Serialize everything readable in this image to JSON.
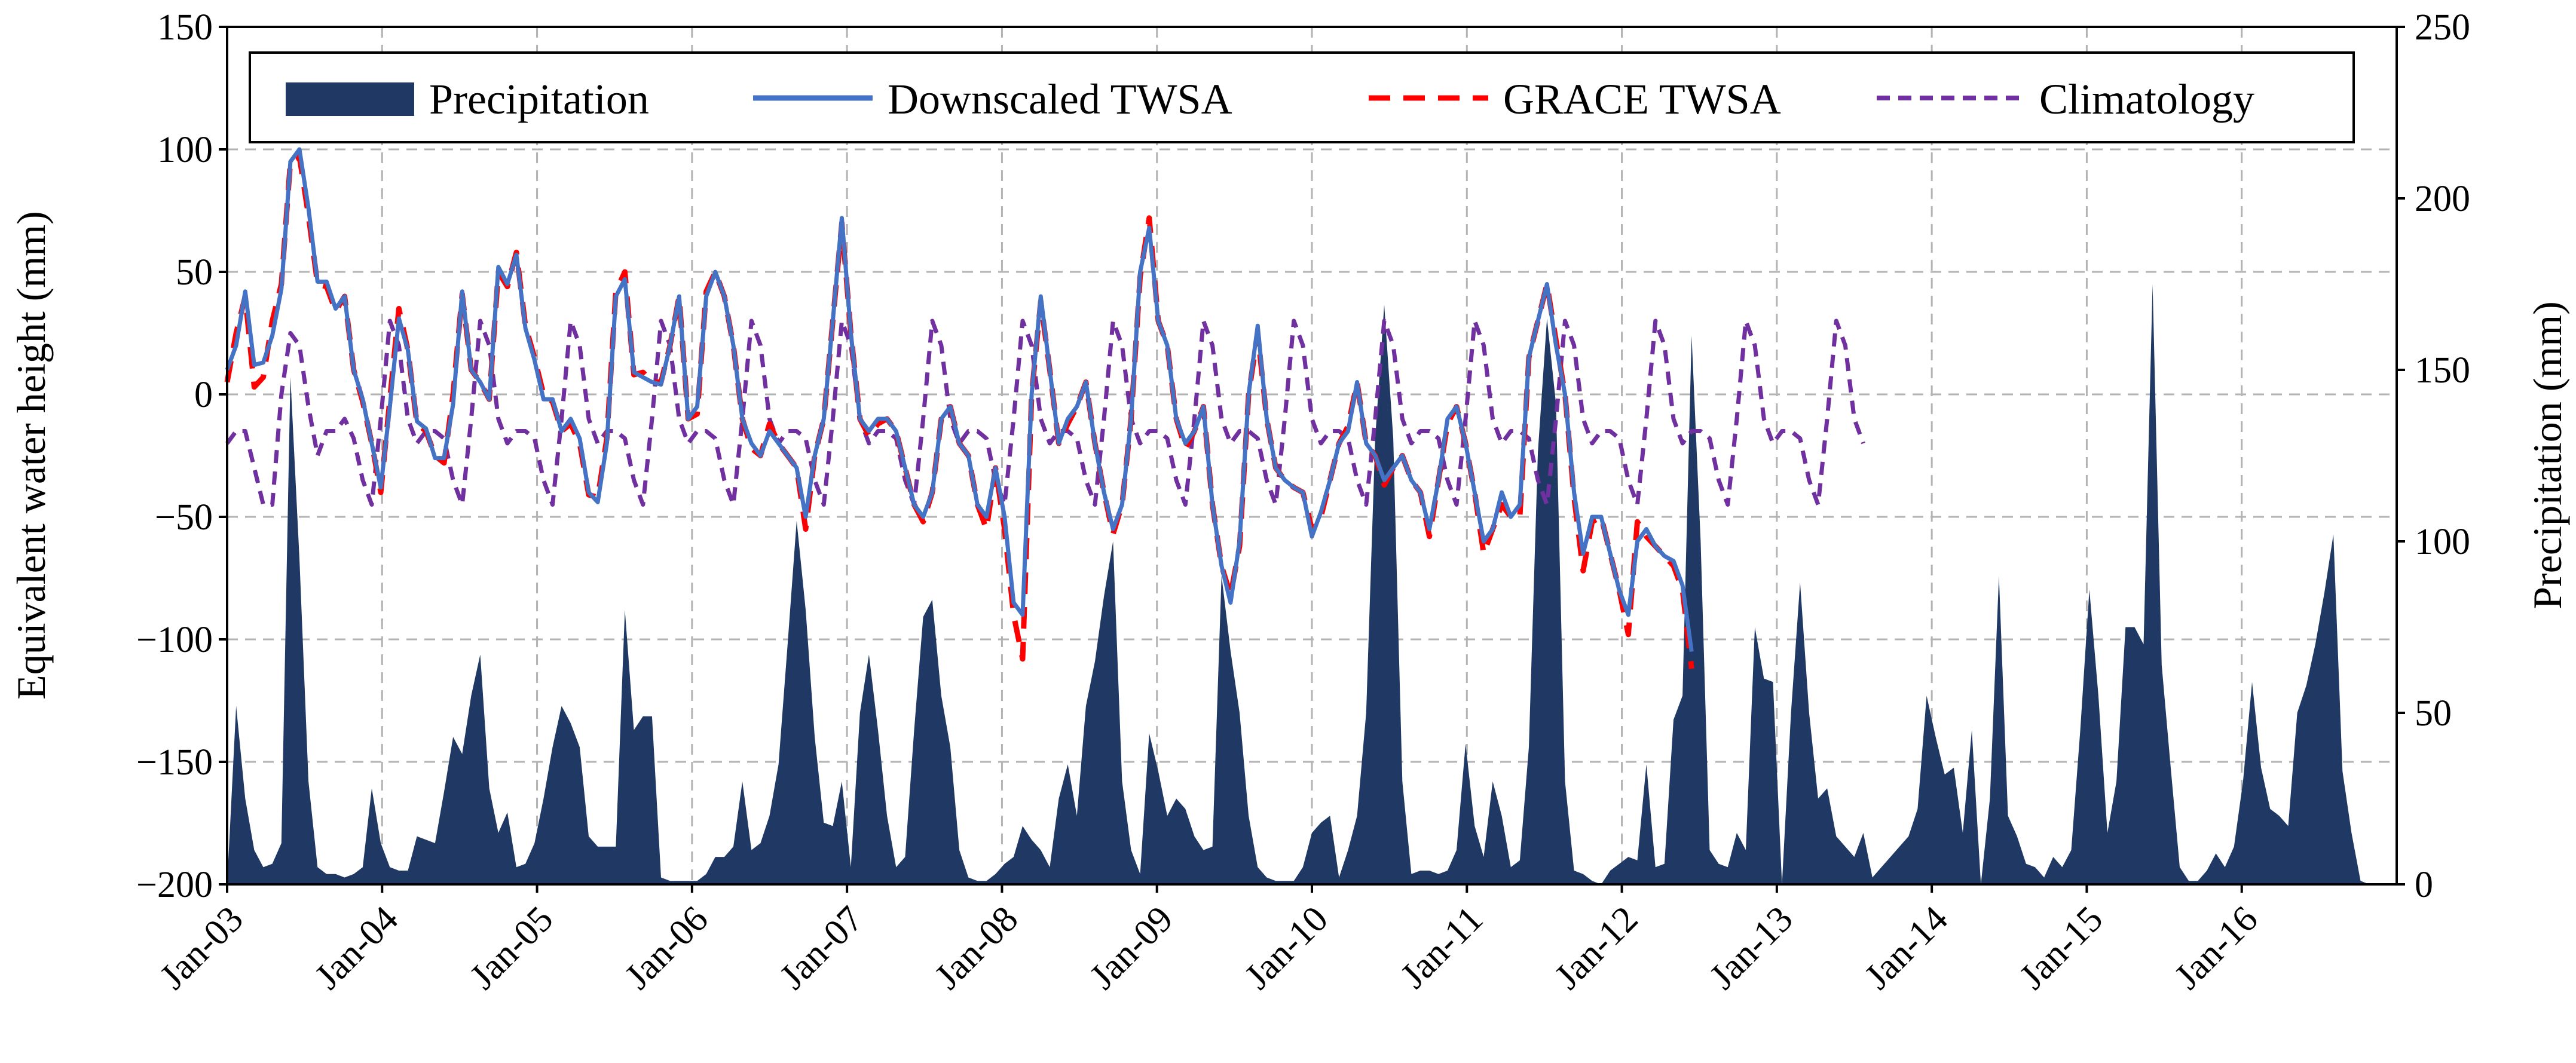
{
  "chart_data": {
    "type": "line",
    "title": "",
    "xlabel": "",
    "ylabel": "Equivalent water height (mm)",
    "y2label": "Precipitation (mm)",
    "ylim": [
      -200,
      150
    ],
    "y2lim": [
      0,
      250
    ],
    "yticks": [
      "150",
      "100",
      "50",
      "0",
      "−50",
      "−100",
      "−150",
      "−200"
    ],
    "y2ticks": [
      "250",
      "200",
      "150",
      "100",
      "50",
      "0"
    ],
    "xticks": [
      "Jan-03",
      "Jan-04",
      "Jan-05",
      "Jan-06",
      "Jan-07",
      "Jan-08",
      "Jan-09",
      "Jan-10",
      "Jan-11",
      "Jan-12",
      "Jan-13",
      "Jan-14",
      "Jan-15",
      "Jan-16"
    ],
    "grid": true,
    "legend_position": "top",
    "colors": {
      "precipitation": "#1f3864",
      "downscaled": "#4472c4",
      "grace": "#ff0000",
      "climatology": "#7030a0"
    },
    "series": [
      {
        "name": "Precipitation",
        "style": "area",
        "axis": "right",
        "values": [
          0,
          52,
          25,
          10,
          5,
          6,
          12,
          148,
          95,
          30,
          5,
          3,
          3,
          2,
          3,
          5,
          28,
          12,
          5,
          4,
          4,
          14,
          13,
          12,
          27,
          43,
          38,
          55,
          67,
          28,
          15,
          21,
          5,
          6,
          12,
          25,
          40,
          52,
          47,
          40,
          14,
          11,
          11,
          11,
          80,
          45,
          49,
          49,
          2,
          1,
          1,
          1,
          1,
          3,
          8,
          8,
          11,
          30,
          10,
          12,
          20,
          35,
          70,
          106,
          80,
          43,
          18,
          17,
          30,
          5,
          50,
          67,
          45,
          20,
          5,
          8,
          45,
          78,
          83,
          55,
          40,
          10,
          2,
          1,
          1,
          3,
          6,
          8,
          17,
          13,
          10,
          5,
          25,
          35,
          20,
          52,
          65,
          84,
          100,
          30,
          10,
          3,
          44,
          33,
          20,
          25,
          22,
          14,
          10,
          11,
          90,
          68,
          50,
          20,
          5,
          2,
          1,
          1,
          1,
          5,
          15,
          18,
          20,
          2,
          10,
          20,
          50,
          130,
          169,
          130,
          30,
          3,
          4,
          4,
          3,
          4,
          10,
          41,
          17,
          8,
          30,
          20,
          5,
          7,
          40,
          126,
          165,
          140,
          30,
          4,
          3,
          1,
          0,
          4,
          6,
          8,
          7,
          35,
          5,
          6,
          48,
          55,
          160,
          100,
          10,
          6,
          5,
          15,
          10,
          75,
          60,
          59,
          0,
          50,
          88,
          50,
          25,
          28,
          14,
          11,
          8,
          15,
          2,
          5,
          8,
          11,
          14,
          22,
          55,
          43,
          32,
          34,
          15,
          45,
          0,
          25,
          90,
          20,
          14,
          6,
          5,
          2,
          8,
          5,
          10,
          45,
          86,
          55,
          15,
          30,
          75,
          75,
          70,
          175,
          64,
          34,
          5,
          1,
          1,
          4,
          9,
          5,
          11,
          30,
          59,
          34,
          22,
          20,
          17,
          50,
          58,
          70,
          85,
          102,
          33,
          15,
          1,
          0,
          0,
          0,
          0
        ]
      },
      {
        "name": "Downscaled TWSA",
        "style": "solid",
        "axis": "left",
        "values": [
          10,
          20,
          42,
          12,
          13,
          24,
          43,
          95,
          100,
          76,
          46,
          46,
          35,
          40,
          10,
          -2,
          -20,
          -38,
          -5,
          31,
          18,
          -11,
          -14,
          -26,
          -26,
          -4,
          42,
          10,
          5,
          -2,
          52,
          45,
          57,
          27,
          14,
          -2,
          -2,
          -15,
          -10,
          -18,
          -40,
          -44,
          -20,
          40,
          47,
          9,
          7,
          5,
          4,
          20,
          40,
          -10,
          -5,
          40,
          50,
          40,
          20,
          -10,
          -20,
          -25,
          -15,
          -20,
          -25,
          -30,
          -50,
          -25,
          -10,
          30,
          72,
          25,
          -10,
          -15,
          -10,
          -10,
          -15,
          -30,
          -45,
          -50,
          -40,
          -10,
          -5,
          -20,
          -25,
          -45,
          -50,
          -30,
          -50,
          -85,
          -90,
          0,
          40,
          10,
          -20,
          -10,
          -5,
          5,
          -20,
          -40,
          -55,
          -45,
          -10,
          50,
          68,
          30,
          20,
          -10,
          -20,
          -15,
          -5,
          -45,
          -70,
          -85,
          -60,
          0,
          28,
          -10,
          -30,
          -35,
          -38,
          -40,
          -58,
          -48,
          -35,
          -20,
          -15,
          5,
          -20,
          -25,
          -35,
          -30,
          -25,
          -35,
          -40,
          -55,
          -35,
          -10,
          -5,
          -20,
          -40,
          -60,
          -55,
          -40,
          -50,
          -45,
          15,
          30,
          45,
          20,
          0,
          -40,
          -65,
          -50,
          -50,
          -65,
          -80,
          -90,
          -60,
          -55,
          -62,
          -66,
          -68,
          -78,
          -105
        ]
      },
      {
        "name": "GRACE TWSA",
        "style": "dashed",
        "axis": "left",
        "values": [
          5,
          25,
          40,
          3,
          7,
          30,
          45,
          95,
          97,
          73,
          45,
          44,
          34,
          40,
          10,
          -3,
          -20,
          -40,
          -2,
          35,
          18,
          -12,
          -15,
          -25,
          -28,
          0,
          41,
          10,
          5,
          -2,
          50,
          44,
          58,
          28,
          15,
          0,
          -3,
          -15,
          -12,
          -20,
          -41,
          -42,
          -18,
          42,
          50,
          8,
          9,
          5,
          5,
          20,
          40,
          -10,
          -8,
          42,
          50,
          40,
          20,
          -10,
          -22,
          -25,
          -12,
          -20,
          -25,
          -30,
          -55,
          -25,
          -10,
          30,
          70,
          25,
          -10,
          -17,
          -12,
          -10,
          -15,
          -30,
          -45,
          -52,
          -40,
          -10,
          -5,
          -20,
          -25,
          -45,
          -55,
          -30,
          -55,
          -90,
          -108,
          0,
          38,
          10,
          -20,
          -12,
          -5,
          5,
          -20,
          -40,
          -57,
          -45,
          -10,
          48,
          72,
          30,
          20,
          -10,
          -22,
          -15,
          -5,
          -45,
          -70,
          -82,
          -62,
          0,
          25,
          -10,
          -30,
          -35,
          -38,
          -40,
          -55,
          -50,
          -35,
          -20,
          -13,
          5,
          -20,
          -25,
          -37,
          -30,
          -25,
          -35,
          -40,
          -58,
          -35,
          -12,
          -5,
          -20,
          -40,
          -65,
          -55,
          -45,
          -50,
          -50,
          15,
          30,
          45,
          22,
          0,
          -42,
          -72,
          -52,
          -50,
          -65,
          -80,
          -98,
          -52,
          -58,
          -62,
          -66,
          -70,
          -80,
          -112
        ]
      },
      {
        "name": "Climatology",
        "style": "short-dashed",
        "axis": "left",
        "values": [
          -20,
          -15,
          -15,
          -30,
          -45,
          -45,
          0,
          25,
          20,
          -5,
          -25,
          -15,
          -15,
          -10,
          -18,
          -35,
          -45,
          -10,
          30,
          20,
          -10,
          -20,
          -15,
          -15,
          -18,
          -35,
          -45,
          -10,
          30,
          20,
          -10,
          -20,
          -15,
          -15,
          -18,
          -35,
          -45,
          -10,
          30,
          20,
          -10,
          -20,
          -15,
          -15,
          -18,
          -35,
          -45,
          -10,
          30,
          20,
          -10,
          -20,
          -15,
          -15,
          -18,
          -35,
          -45,
          -10,
          30,
          20,
          -10,
          -20,
          -15,
          -15,
          -18,
          -35,
          -45,
          -10,
          30,
          20,
          -10,
          -20,
          -15,
          -15,
          -18,
          -35,
          -45,
          -10,
          30,
          20,
          -10,
          -20,
          -15,
          -15,
          -18,
          -35,
          -45,
          -10,
          30,
          20,
          -10,
          -20,
          -15,
          -15,
          -18,
          -35,
          -45,
          -10,
          30,
          20,
          -10,
          -20,
          -15,
          -15,
          -18,
          -35,
          -45,
          -10,
          30,
          20,
          -10,
          -20,
          -15,
          -15,
          -18,
          -35,
          -45,
          -10,
          30,
          20,
          -10,
          -20,
          -15,
          -15,
          -18,
          -35,
          -45,
          -10,
          30,
          20,
          -10,
          -20,
          -15,
          -15,
          -18,
          -35,
          -45,
          -10,
          30,
          20,
          -10,
          -20,
          -15,
          -15,
          -18,
          -35,
          -45,
          -10,
          30,
          20,
          -10,
          -20,
          -15,
          -15,
          -18,
          -35,
          -45,
          -10,
          30,
          20,
          -10,
          -20,
          -15,
          -15,
          -18,
          -35,
          -45,
          -10,
          30,
          20,
          -10,
          -20,
          -15,
          -15,
          -18,
          -35,
          -45,
          -10,
          30,
          20,
          -10,
          -20
        ]
      }
    ]
  }
}
